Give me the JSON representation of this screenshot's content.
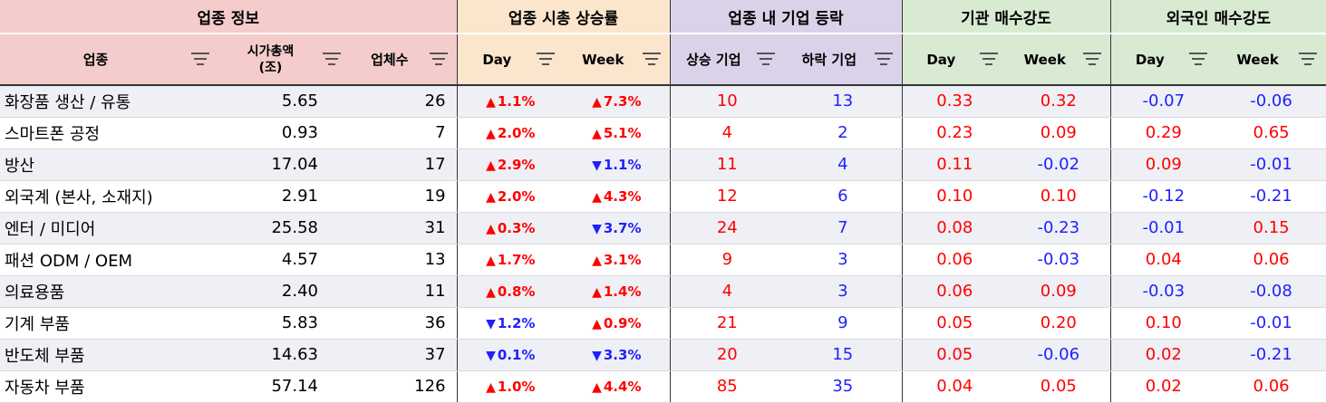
{
  "groups": [
    {
      "label": "업종 정보"
    },
    {
      "label": "업종 시총 상승률"
    },
    {
      "label": "업종 내 기업 등락"
    },
    {
      "label": "기관 매수강도"
    },
    {
      "label": "외국인 매수강도"
    }
  ],
  "columns": [
    {
      "label": "업종"
    },
    {
      "label": "시가총액\n(조)"
    },
    {
      "label": "업체수"
    },
    {
      "label": "Day"
    },
    {
      "label": "Week"
    },
    {
      "label": "상승 기업"
    },
    {
      "label": "하락 기업"
    },
    {
      "label": "Day"
    },
    {
      "label": "Week"
    },
    {
      "label": "Day"
    },
    {
      "label": "Week"
    }
  ],
  "icons": {
    "filter": "filter-icon",
    "up": "▲",
    "down": "▼"
  },
  "colors": {
    "up": "#ff0000",
    "down": "#1f1fff"
  },
  "rows": [
    {
      "name": "화장품 생산 / 유통",
      "cap": "5.65",
      "count": "26",
      "day": {
        "dir": "up",
        "v": "1.1%"
      },
      "week": {
        "dir": "up",
        "v": "7.3%"
      },
      "rise": "10",
      "fall": "13",
      "inst_day": "0.33",
      "inst_week": "0.32",
      "for_day": "-0.07",
      "for_week": "-0.06"
    },
    {
      "name": "스마트폰 공정",
      "cap": "0.93",
      "count": "7",
      "day": {
        "dir": "up",
        "v": "2.0%"
      },
      "week": {
        "dir": "up",
        "v": "5.1%"
      },
      "rise": "4",
      "fall": "2",
      "inst_day": "0.23",
      "inst_week": "0.09",
      "for_day": "0.29",
      "for_week": "0.65"
    },
    {
      "name": "방산",
      "cap": "17.04",
      "count": "17",
      "day": {
        "dir": "up",
        "v": "2.9%"
      },
      "week": {
        "dir": "down",
        "v": "1.1%"
      },
      "rise": "11",
      "fall": "4",
      "inst_day": "0.11",
      "inst_week": "-0.02",
      "for_day": "0.09",
      "for_week": "-0.01"
    },
    {
      "name": "외국계 (본사, 소재지)",
      "cap": "2.91",
      "count": "19",
      "day": {
        "dir": "up",
        "v": "2.0%"
      },
      "week": {
        "dir": "up",
        "v": "4.3%"
      },
      "rise": "12",
      "fall": "6",
      "inst_day": "0.10",
      "inst_week": "0.10",
      "for_day": "-0.12",
      "for_week": "-0.21"
    },
    {
      "name": "엔터 / 미디어",
      "cap": "25.58",
      "count": "31",
      "day": {
        "dir": "up",
        "v": "0.3%"
      },
      "week": {
        "dir": "down",
        "v": "3.7%"
      },
      "rise": "24",
      "fall": "7",
      "inst_day": "0.08",
      "inst_week": "-0.23",
      "for_day": "-0.01",
      "for_week": "0.15"
    },
    {
      "name": "패션 ODM / OEM",
      "cap": "4.57",
      "count": "13",
      "day": {
        "dir": "up",
        "v": "1.7%"
      },
      "week": {
        "dir": "up",
        "v": "3.1%"
      },
      "rise": "9",
      "fall": "3",
      "inst_day": "0.06",
      "inst_week": "-0.03",
      "for_day": "0.04",
      "for_week": "0.06"
    },
    {
      "name": "의료용품",
      "cap": "2.40",
      "count": "11",
      "day": {
        "dir": "up",
        "v": "0.8%"
      },
      "week": {
        "dir": "up",
        "v": "1.4%"
      },
      "rise": "4",
      "fall": "3",
      "inst_day": "0.06",
      "inst_week": "0.09",
      "for_day": "-0.03",
      "for_week": "-0.08"
    },
    {
      "name": "기계 부품",
      "cap": "5.83",
      "count": "36",
      "day": {
        "dir": "down",
        "v": "1.2%"
      },
      "week": {
        "dir": "up",
        "v": "0.9%"
      },
      "rise": "21",
      "fall": "9",
      "inst_day": "0.05",
      "inst_week": "0.20",
      "for_day": "0.10",
      "for_week": "-0.01"
    },
    {
      "name": "반도체 부품",
      "cap": "14.63",
      "count": "37",
      "day": {
        "dir": "down",
        "v": "0.1%"
      },
      "week": {
        "dir": "down",
        "v": "3.3%"
      },
      "rise": "20",
      "fall": "15",
      "inst_day": "0.05",
      "inst_week": "-0.06",
      "for_day": "0.02",
      "for_week": "-0.21"
    },
    {
      "name": "자동차 부품",
      "cap": "57.14",
      "count": "126",
      "day": {
        "dir": "up",
        "v": "1.0%"
      },
      "week": {
        "dir": "up",
        "v": "4.4%"
      },
      "rise": "85",
      "fall": "35",
      "inst_day": "0.04",
      "inst_week": "0.05",
      "for_day": "0.02",
      "for_week": "0.06"
    }
  ]
}
